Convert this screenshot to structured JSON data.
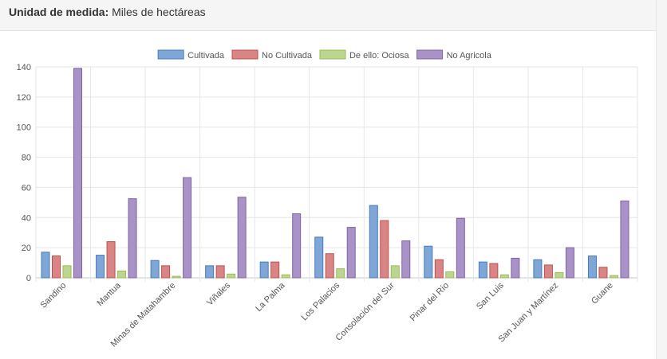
{
  "header": {
    "unit_label": "Unidad de medida:",
    "unit_value": "Miles de hectáreas"
  },
  "chart_data": {
    "type": "bar",
    "categories": [
      "Sandino",
      "Mantua",
      "Minas de Matahambre",
      "Viñales",
      "La Palma",
      "Los Palacios",
      "Consolación del Sur",
      "Pinar del Río",
      "San Luis",
      "San Juan y Martínez",
      "Guane"
    ],
    "series": [
      {
        "name": "Cultivada",
        "color": "#7ea6d6",
        "stroke": "#4a7bbd",
        "values": [
          17,
          15,
          11.5,
          8,
          10.5,
          27,
          48,
          21,
          10.5,
          12,
          14.5
        ]
      },
      {
        "name": "No Cultivada",
        "color": "#d98585",
        "stroke": "#c0504d",
        "values": [
          14.5,
          24,
          8,
          8,
          10.5,
          16,
          38,
          12,
          9.5,
          8.5,
          7
        ]
      },
      {
        "name": "De ello: Ociosa",
        "color": "#bcd68f",
        "stroke": "#9bbb59",
        "values": [
          8,
          4.5,
          1,
          2.5,
          2,
          6,
          8,
          4,
          2,
          3.5,
          1.5
        ]
      },
      {
        "name": "No Agricola",
        "color": "#a992c8",
        "stroke": "#8064a2",
        "values": [
          139,
          52.5,
          66.5,
          53.5,
          42.5,
          33.5,
          24.5,
          39.5,
          13,
          20,
          51
        ]
      }
    ],
    "ylim": [
      0,
      140
    ],
    "yticks": [
      0,
      20,
      40,
      60,
      80,
      100,
      120,
      140
    ],
    "grid": true,
    "legend_position": "top-center"
  }
}
